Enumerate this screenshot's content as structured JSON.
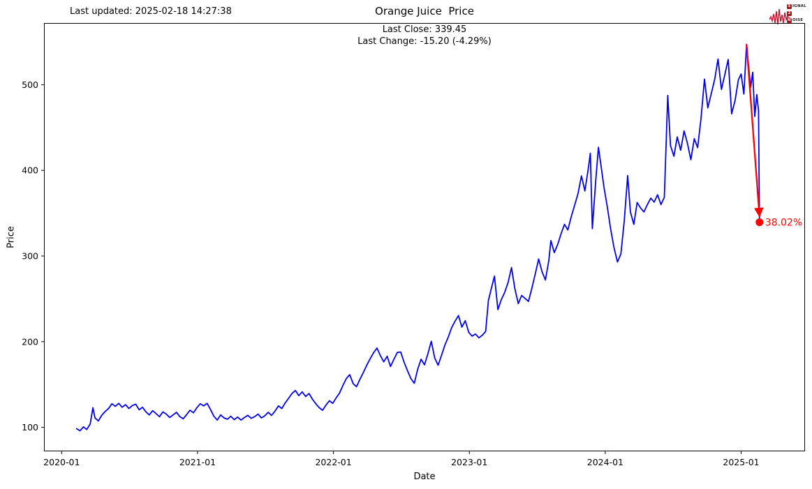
{
  "header": {
    "last_updated": "Last updated: 2025-02-18 14:27:38",
    "title": "Orange Juice  Price",
    "subtitle_line1": "Last Close: 339.45",
    "subtitle_line2": "Last Change: -15.20 (-4.29%)"
  },
  "logo": {
    "s1": "S",
    "r1": "IGNAL",
    "s2": "2",
    "r2": "",
    "s3": "N",
    "r3": "OISE",
    "wave_color": "#c41230"
  },
  "chart_data": {
    "type": "line",
    "title": "Orange Juice  Price",
    "xlabel": "Date",
    "ylabel": "Price",
    "last_close": 339.45,
    "last_change": "-15.20 (-4.29%)",
    "line_color": "#0000ee",
    "annotation_color": "#ff0000",
    "axis_color": "#000000",
    "grid": false,
    "legend": "none",
    "xlim": [
      2019.87,
      2025.47
    ],
    "ylim": [
      72,
      572
    ],
    "x_ticks": [
      {
        "pos": 2020.0,
        "label": "2020-01"
      },
      {
        "pos": 2021.0,
        "label": "2021-01"
      },
      {
        "pos": 2022.0,
        "label": "2022-01"
      },
      {
        "pos": 2023.0,
        "label": "2023-01"
      },
      {
        "pos": 2024.0,
        "label": "2024-01"
      },
      {
        "pos": 2025.0,
        "label": "2025-01"
      }
    ],
    "y_ticks": [
      100,
      200,
      300,
      400,
      500
    ],
    "annotation": {
      "label": "38.02%",
      "line_from": {
        "x": 2025.04,
        "y": 547
      },
      "line_to": {
        "x": 2025.135,
        "y": 346
      },
      "dot": {
        "x": 2025.135,
        "y": 339.45
      }
    },
    "series": [
      {
        "name": "Orange Juice",
        "points": [
          [
            2020.11,
            98.5
          ],
          [
            2020.135,
            96
          ],
          [
            2020.16,
            100.5
          ],
          [
            2020.185,
            97.5
          ],
          [
            2020.21,
            104
          ],
          [
            2020.23,
            123
          ],
          [
            2020.245,
            111
          ],
          [
            2020.27,
            107.5
          ],
          [
            2020.295,
            114
          ],
          [
            2020.32,
            118.5
          ],
          [
            2020.345,
            122
          ],
          [
            2020.37,
            127.5
          ],
          [
            2020.395,
            124.5
          ],
          [
            2020.42,
            128
          ],
          [
            2020.445,
            123.5
          ],
          [
            2020.47,
            126.5
          ],
          [
            2020.495,
            122
          ],
          [
            2020.52,
            125.5
          ],
          [
            2020.545,
            127
          ],
          [
            2020.57,
            120.5
          ],
          [
            2020.595,
            123.5
          ],
          [
            2020.62,
            118
          ],
          [
            2020.645,
            114.5
          ],
          [
            2020.67,
            119.5
          ],
          [
            2020.695,
            116
          ],
          [
            2020.72,
            112.5
          ],
          [
            2020.745,
            118
          ],
          [
            2020.77,
            115.5
          ],
          [
            2020.795,
            111.5
          ],
          [
            2020.82,
            114.5
          ],
          [
            2020.845,
            117.5
          ],
          [
            2020.87,
            112.5
          ],
          [
            2020.895,
            110
          ],
          [
            2020.92,
            115
          ],
          [
            2020.945,
            120
          ],
          [
            2020.97,
            117
          ],
          [
            2020.995,
            123
          ],
          [
            2021.02,
            127.5
          ],
          [
            2021.045,
            125
          ],
          [
            2021.07,
            128
          ],
          [
            2021.095,
            121
          ],
          [
            2021.12,
            113
          ],
          [
            2021.145,
            108.5
          ],
          [
            2021.17,
            114.5
          ],
          [
            2021.195,
            111
          ],
          [
            2021.22,
            109.5
          ],
          [
            2021.245,
            113
          ],
          [
            2021.27,
            109
          ],
          [
            2021.295,
            112
          ],
          [
            2021.32,
            108.5
          ],
          [
            2021.345,
            111.5
          ],
          [
            2021.37,
            114
          ],
          [
            2021.395,
            110.5
          ],
          [
            2021.42,
            112.5
          ],
          [
            2021.445,
            115.5
          ],
          [
            2021.47,
            111
          ],
          [
            2021.495,
            113.5
          ],
          [
            2021.52,
            117.5
          ],
          [
            2021.545,
            114
          ],
          [
            2021.57,
            119
          ],
          [
            2021.595,
            125
          ],
          [
            2021.62,
            122
          ],
          [
            2021.645,
            128.5
          ],
          [
            2021.67,
            134
          ],
          [
            2021.695,
            139.5
          ],
          [
            2021.72,
            143
          ],
          [
            2021.745,
            137
          ],
          [
            2021.77,
            141.5
          ],
          [
            2021.795,
            136
          ],
          [
            2021.82,
            139.5
          ],
          [
            2021.845,
            133
          ],
          [
            2021.87,
            127.5
          ],
          [
            2021.895,
            123
          ],
          [
            2021.92,
            120
          ],
          [
            2021.945,
            126
          ],
          [
            2021.97,
            131
          ],
          [
            2021.995,
            128
          ],
          [
            2022.02,
            134.5
          ],
          [
            2022.045,
            140
          ],
          [
            2022.07,
            149
          ],
          [
            2022.095,
            157
          ],
          [
            2022.12,
            161.5
          ],
          [
            2022.145,
            151
          ],
          [
            2022.17,
            147.5
          ],
          [
            2022.195,
            156
          ],
          [
            2022.22,
            164
          ],
          [
            2022.245,
            172.5
          ],
          [
            2022.27,
            180
          ],
          [
            2022.295,
            187
          ],
          [
            2022.32,
            192.5
          ],
          [
            2022.345,
            184
          ],
          [
            2022.37,
            176.5
          ],
          [
            2022.395,
            183
          ],
          [
            2022.42,
            171
          ],
          [
            2022.445,
            179.5
          ],
          [
            2022.47,
            187.5
          ],
          [
            2022.495,
            188
          ],
          [
            2022.52,
            176
          ],
          [
            2022.545,
            166
          ],
          [
            2022.57,
            157
          ],
          [
            2022.595,
            151.5
          ],
          [
            2022.62,
            168
          ],
          [
            2022.645,
            179.5
          ],
          [
            2022.67,
            173
          ],
          [
            2022.695,
            186
          ],
          [
            2022.72,
            200.5
          ],
          [
            2022.745,
            181
          ],
          [
            2022.77,
            172.5
          ],
          [
            2022.795,
            184
          ],
          [
            2022.82,
            196
          ],
          [
            2022.845,
            205.5
          ],
          [
            2022.87,
            216.5
          ],
          [
            2022.895,
            224
          ],
          [
            2022.92,
            230.5
          ],
          [
            2022.945,
            217
          ],
          [
            2022.97,
            224.5
          ],
          [
            2022.995,
            211
          ],
          [
            2023.02,
            206.5
          ],
          [
            2023.045,
            209
          ],
          [
            2023.07,
            204.5
          ],
          [
            2023.095,
            207.5
          ],
          [
            2023.12,
            212
          ],
          [
            2023.14,
            248
          ],
          [
            2023.16,
            261
          ],
          [
            2023.185,
            276.5
          ],
          [
            2023.21,
            237.5
          ],
          [
            2023.235,
            249
          ],
          [
            2023.26,
            257.5
          ],
          [
            2023.285,
            269
          ],
          [
            2023.31,
            286.5
          ],
          [
            2023.335,
            262
          ],
          [
            2023.36,
            244.5
          ],
          [
            2023.385,
            254
          ],
          [
            2023.41,
            250.5
          ],
          [
            2023.435,
            247
          ],
          [
            2023.46,
            262.5
          ],
          [
            2023.485,
            279
          ],
          [
            2023.51,
            296.5
          ],
          [
            2023.535,
            281.5
          ],
          [
            2023.56,
            272
          ],
          [
            2023.585,
            295
          ],
          [
            2023.6,
            318
          ],
          [
            2023.625,
            304
          ],
          [
            2023.65,
            313.5
          ],
          [
            2023.675,
            326
          ],
          [
            2023.7,
            337
          ],
          [
            2023.725,
            330.5
          ],
          [
            2023.75,
            346
          ],
          [
            2023.775,
            359.5
          ],
          [
            2023.8,
            373
          ],
          [
            2023.825,
            393.5
          ],
          [
            2023.85,
            376
          ],
          [
            2023.875,
            401.5
          ],
          [
            2023.89,
            420
          ],
          [
            2023.905,
            332
          ],
          [
            2023.93,
            388.5
          ],
          [
            2023.95,
            427
          ],
          [
            2023.97,
            404.5
          ],
          [
            2023.99,
            381
          ],
          [
            2024.015,
            357.5
          ],
          [
            2024.04,
            331
          ],
          [
            2024.065,
            309.5
          ],
          [
            2024.09,
            293
          ],
          [
            2024.115,
            302.5
          ],
          [
            2024.14,
            341
          ],
          [
            2024.165,
            394
          ],
          [
            2024.185,
            351.5
          ],
          [
            2024.21,
            337
          ],
          [
            2024.235,
            362.5
          ],
          [
            2024.26,
            356
          ],
          [
            2024.285,
            351.5
          ],
          [
            2024.31,
            360
          ],
          [
            2024.335,
            367.5
          ],
          [
            2024.36,
            363
          ],
          [
            2024.385,
            371.5
          ],
          [
            2024.41,
            360
          ],
          [
            2024.435,
            368.5
          ],
          [
            2024.46,
            487.5
          ],
          [
            2024.48,
            429
          ],
          [
            2024.505,
            416.5
          ],
          [
            2024.53,
            439
          ],
          [
            2024.555,
            423.5
          ],
          [
            2024.58,
            446
          ],
          [
            2024.605,
            431.5
          ],
          [
            2024.63,
            412.5
          ],
          [
            2024.655,
            437
          ],
          [
            2024.68,
            426.5
          ],
          [
            2024.705,
            461
          ],
          [
            2024.73,
            506.5
          ],
          [
            2024.755,
            473
          ],
          [
            2024.78,
            489.5
          ],
          [
            2024.805,
            506
          ],
          [
            2024.83,
            530
          ],
          [
            2024.855,
            494.5
          ],
          [
            2024.88,
            512
          ],
          [
            2024.905,
            529.5
          ],
          [
            2024.93,
            466
          ],
          [
            2024.955,
            481.5
          ],
          [
            2024.98,
            506
          ],
          [
            2025.0,
            512.5
          ],
          [
            2025.02,
            489
          ],
          [
            2025.04,
            547
          ],
          [
            2025.055,
            521.5
          ],
          [
            2025.07,
            497
          ],
          [
            2025.085,
            514.5
          ],
          [
            2025.1,
            463
          ],
          [
            2025.115,
            488.5
          ],
          [
            2025.128,
            470
          ],
          [
            2025.135,
            339.45
          ]
        ]
      }
    ]
  }
}
